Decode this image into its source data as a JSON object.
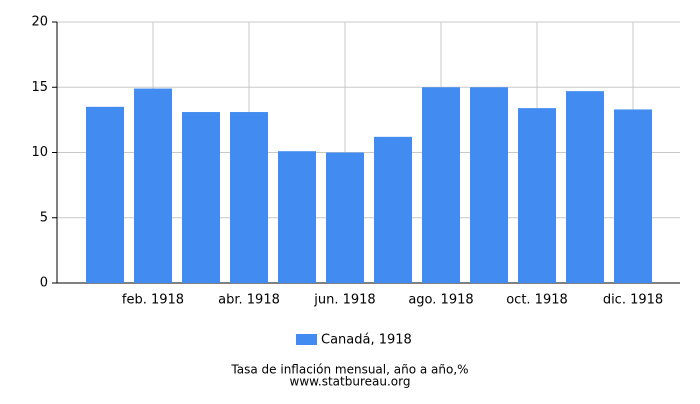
{
  "chart_data": {
    "type": "bar",
    "categories": [
      null,
      "feb. 1918",
      null,
      "abr. 1918",
      null,
      "jun. 1918",
      null,
      "ago. 1918",
      null,
      "oct. 1918",
      null,
      "dic. 1918"
    ],
    "series": [
      {
        "name": "Canadá, 1918",
        "color": "#428bf0",
        "values": [
          13.5,
          14.9,
          13.1,
          13.1,
          10.1,
          10.0,
          11.2,
          15.0,
          15.0,
          13.4,
          14.7,
          13.3
        ]
      }
    ],
    "ylim": [
      0,
      20
    ],
    "yticks": [
      0,
      5,
      10,
      15,
      20
    ],
    "grid": true,
    "legend": "bottom",
    "footer": [
      "Tasa de inflación mensual, año a año,%",
      "www.statbureau.org"
    ]
  }
}
